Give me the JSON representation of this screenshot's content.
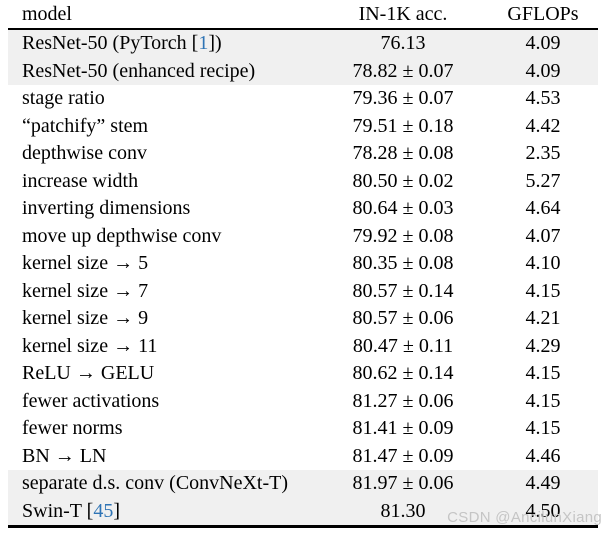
{
  "header": {
    "columns": [
      "model",
      "IN-1K acc.",
      "GFLOPs"
    ]
  },
  "table": {
    "rows": [
      {
        "model_pre": "ResNet-50 (PyTorch [",
        "model_cite": "1",
        "model_post": "])",
        "acc": "76.13",
        "flops": "4.09",
        "shaded": true
      },
      {
        "model_pre": "ResNet-50 (enhanced recipe)",
        "model_cite": "",
        "model_post": "",
        "acc": "78.82 ± 0.07",
        "flops": "4.09",
        "shaded": true
      },
      {
        "model_pre": "stage ratio",
        "model_cite": "",
        "model_post": "",
        "acc": "79.36 ± 0.07",
        "flops": "4.53",
        "shaded": false
      },
      {
        "model_pre": "“patchify” stem",
        "model_cite": "",
        "model_post": "",
        "acc": "79.51 ± 0.18",
        "flops": "4.42",
        "shaded": false
      },
      {
        "model_pre": "depthwise conv",
        "model_cite": "",
        "model_post": "",
        "acc": "78.28 ± 0.08",
        "flops": "2.35",
        "shaded": false
      },
      {
        "model_pre": "increase width",
        "model_cite": "",
        "model_post": "",
        "acc": "80.50 ± 0.02",
        "flops": "5.27",
        "shaded": false
      },
      {
        "model_pre": "inverting dimensions",
        "model_cite": "",
        "model_post": "",
        "acc": "80.64 ± 0.03",
        "flops": "4.64",
        "shaded": false
      },
      {
        "model_pre": "move up depthwise conv",
        "model_cite": "",
        "model_post": "",
        "acc": "79.92 ± 0.08",
        "flops": "4.07",
        "shaded": false
      },
      {
        "model_pre": "kernel size → 5",
        "model_cite": "",
        "model_post": "",
        "acc": "80.35 ± 0.08",
        "flops": "4.10",
        "shaded": false
      },
      {
        "model_pre": "kernel size → 7",
        "model_cite": "",
        "model_post": "",
        "acc": "80.57 ± 0.14",
        "flops": "4.15",
        "shaded": false
      },
      {
        "model_pre": "kernel size → 9",
        "model_cite": "",
        "model_post": "",
        "acc": "80.57 ± 0.06",
        "flops": "4.21",
        "shaded": false
      },
      {
        "model_pre": "kernel size → 11",
        "model_cite": "",
        "model_post": "",
        "acc": "80.47 ± 0.11",
        "flops": "4.29",
        "shaded": false
      },
      {
        "model_pre": "ReLU → GELU",
        "model_cite": "",
        "model_post": "",
        "acc": "80.62 ± 0.14",
        "flops": "4.15",
        "shaded": false
      },
      {
        "model_pre": "fewer activations",
        "model_cite": "",
        "model_post": "",
        "acc": "81.27 ± 0.06",
        "flops": "4.15",
        "shaded": false
      },
      {
        "model_pre": "fewer norms",
        "model_cite": "",
        "model_post": "",
        "acc": "81.41 ± 0.09",
        "flops": "4.15",
        "shaded": false
      },
      {
        "model_pre": "BN → LN",
        "model_cite": "",
        "model_post": "",
        "acc": "81.47 ± 0.09",
        "flops": "4.46",
        "shaded": false
      },
      {
        "model_pre": "separate d.s. conv (ConvNeXt-T)",
        "model_cite": "",
        "model_post": "",
        "acc": "81.97 ± 0.06",
        "flops": "4.49",
        "shaded": true
      },
      {
        "model_pre": "Swin-T [",
        "model_cite": "45",
        "model_post": "]",
        "acc": "81.30",
        "flops": "4.50",
        "shaded": true
      }
    ]
  },
  "watermark": {
    "text": "CSDN @AncilunXiang"
  },
  "colors": {
    "citation": "#2e74b5",
    "row_shade": "#f0f0f0",
    "rule": "#000000",
    "watermark": "#c5c5c5"
  }
}
